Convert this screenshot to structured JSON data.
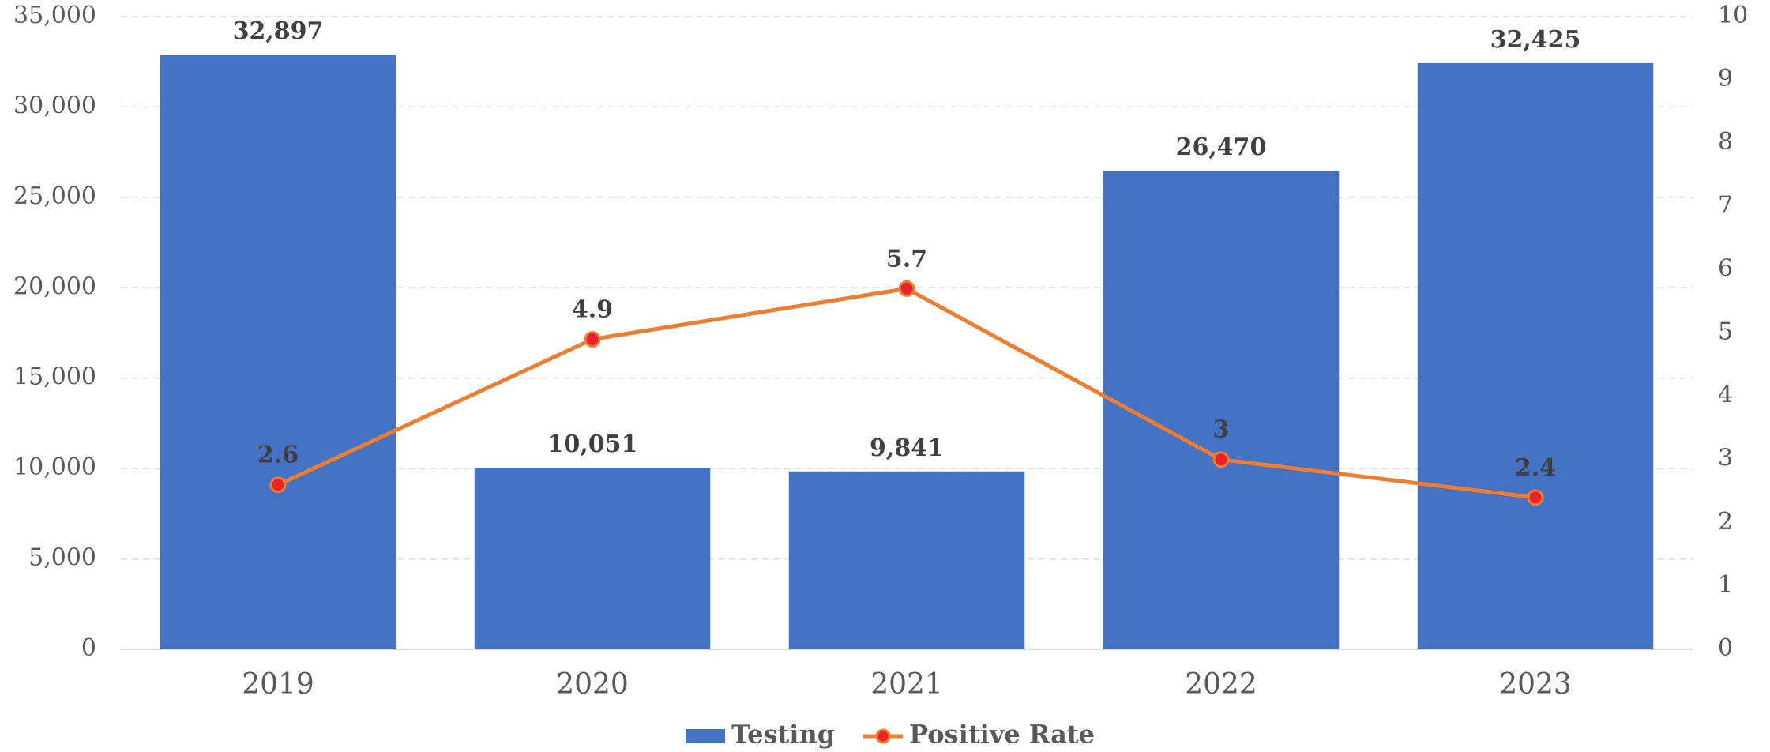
{
  "chart_data": {
    "type": "bar-line",
    "categories": [
      "2019",
      "2020",
      "2021",
      "2022",
      "2023"
    ],
    "series": [
      {
        "name": "Testing",
        "type": "bar",
        "color": "#4472c4",
        "values": [
          32897,
          10051,
          9841,
          26470,
          32425
        ],
        "value_labels": [
          "32,897",
          "10,051",
          "9,841",
          "26,470",
          "32,425"
        ]
      },
      {
        "name": "Positive Rate",
        "type": "line",
        "axis": "y2",
        "color": "#ed7d31",
        "marker_color": "#e8232a",
        "values": [
          2.6,
          4.9,
          5.7,
          3,
          2.4
        ]
      }
    ],
    "ylim": [
      0,
      35000
    ],
    "yticks": [
      0,
      {
        "value": 5000,
        "label": "5,000"
      },
      {
        "value": 10000,
        "label": "10,000"
      },
      {
        "value": 15000,
        "label": "15,000"
      },
      {
        "value": 20000,
        "label": "20,000"
      },
      {
        "value": 25000,
        "label": "25,000"
      },
      {
        "value": 30000,
        "label": "30,000"
      },
      {
        "value": 35000,
        "label": "35,000"
      }
    ],
    "y2lim": [
      0,
      10
    ],
    "y2ticks": [
      0,
      1,
      2,
      3,
      4,
      5,
      6,
      7,
      8,
      9,
      10
    ],
    "grid": true,
    "legend": "bottom"
  }
}
